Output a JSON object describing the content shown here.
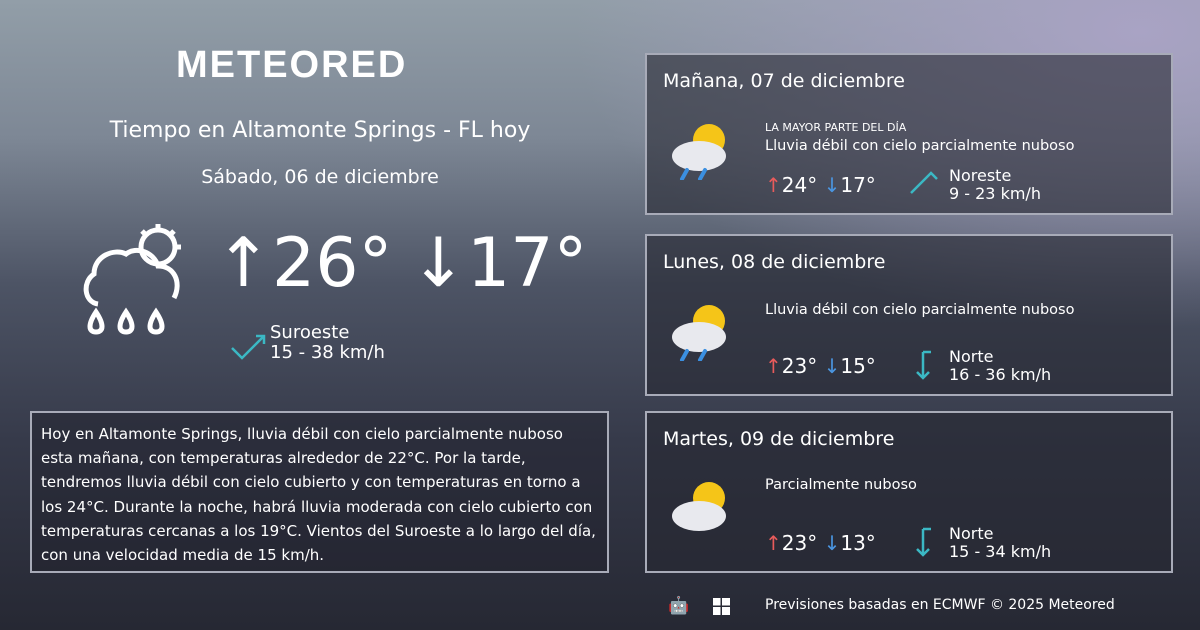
{
  "brand": "METEORED",
  "today": {
    "title": "Tiempo en Altamonte Springs - FL hoy",
    "date": "Sábado, 06 de diciembre",
    "max": "26°",
    "min": "17°",
    "wind_dir": "Suroeste",
    "wind_speed": "15 - 38 km/h",
    "icon": "rain-partly-cloudy-icon"
  },
  "description": "Hoy en Altamonte Springs, lluvia débil con cielo parcialmente nuboso esta mañana, con temperaturas alrededor de 22°C. Por la tarde, tendremos lluvia débil con cielo cubierto y con temperaturas en torno a los 24°C. Durante la noche, habrá lluvia moderada con cielo cubierto  con temperaturas cercanas a los 19°C. Vientos del Suroeste a lo largo del día, con una velocidad media de 15 km/h.",
  "forecast": [
    {
      "title": "Mañana, 07 de diciembre",
      "label": "LA MAYOR PARTE DEL DÍA",
      "condition": "Lluvia débil con cielo parcialmente nuboso",
      "max": "24°",
      "min": "17°",
      "wind_dir": "Noreste",
      "wind_speed": "9 - 23 km/h",
      "icon": "rain-sun-cloud-icon"
    },
    {
      "title": "Lunes, 08 de diciembre",
      "condition": "Lluvia débil con cielo parcialmente nuboso",
      "max": "23°",
      "min": "15°",
      "wind_dir": "Norte",
      "wind_speed": "16 - 36 km/h",
      "icon": "rain-sun-cloud-icon"
    },
    {
      "title": "Martes, 09 de diciembre",
      "condition": "Parcialmente nuboso",
      "max": "23°",
      "min": "13°",
      "wind_dir": "Norte",
      "wind_speed": "15 - 34 km/h",
      "icon": "sun-cloud-icon"
    }
  ],
  "footer": {
    "text": "Previsiones basadas en ECMWF © 2025 Meteored",
    "icons": [
      "android-icon",
      "apple-icon",
      "windows-icon"
    ]
  },
  "colors": {
    "max": "#e85b5b",
    "min": "#4a95e0",
    "wind": "#3bb8c4"
  }
}
